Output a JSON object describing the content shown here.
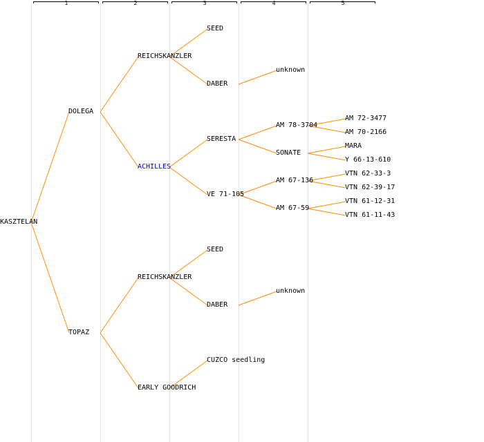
{
  "columns": [
    "1",
    "2",
    "3",
    "4",
    "5"
  ],
  "colors": {
    "edge": "#ff8c00",
    "highlight": "#0000cc",
    "text": "#000000",
    "column_line": "#e6e6e6"
  },
  "nodes": {
    "n0": "KASZTELAN",
    "n1": "DOLEGA",
    "n2": "TOPAZ",
    "n3": "REICHSKANZLER",
    "n4": "ACHILLES",
    "n5": "REICHSKANZLER",
    "n6": "EARLY GOODRICH",
    "n7": "SEED",
    "n8": "DABER",
    "n9": "SERESTA",
    "n10": "VE 71-105",
    "n11": "SEED",
    "n12": "DABER",
    "n13": "CUZCO seedling",
    "n14": "unknown",
    "n15": "AM 78-3704",
    "n16": "SONATE",
    "n17": "AM 67-136",
    "n18": "AM 67-59",
    "n19": "unknown",
    "n20": "AM 72-3477",
    "n21": "AM 70-2166",
    "n22": "MARA",
    "n23": "Y 66-13-610",
    "n24": "VTN 62-33-3",
    "n25": "VTN 62-39-17",
    "n26": "VTN 61-12-31",
    "n27": "VTN 61-11-43"
  }
}
